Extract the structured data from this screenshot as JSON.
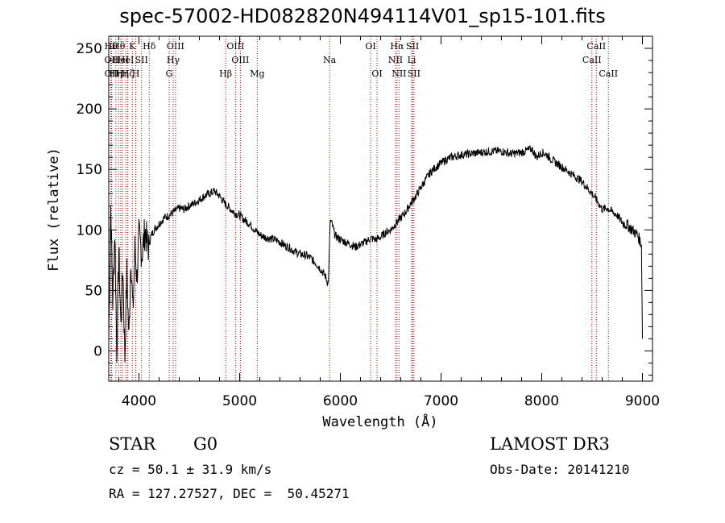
{
  "chart_data": {
    "type": "line",
    "title": "spec-57002-HD082820N494114V01_sp15-101.fits",
    "xlabel": "Wavelength (Å)",
    "ylabel": "Flux (relative)",
    "xlim": [
      3700,
      9100
    ],
    "ylim": [
      -25,
      260
    ],
    "x_ticks": [
      {
        "value": 4000,
        "label": "4000"
      },
      {
        "value": 5000,
        "label": "5000"
      },
      {
        "value": 6000,
        "label": "6000"
      },
      {
        "value": 7000,
        "label": "7000"
      },
      {
        "value": 8000,
        "label": "8000"
      },
      {
        "value": 9000,
        "label": "9000"
      }
    ],
    "y_ticks": [
      {
        "value": 0,
        "label": "0"
      },
      {
        "value": 50,
        "label": "50"
      },
      {
        "value": 100,
        "label": "100"
      },
      {
        "value": 150,
        "label": "150"
      },
      {
        "value": 200,
        "label": "200"
      },
      {
        "value": 250,
        "label": "250"
      }
    ],
    "grid": false,
    "line_color": "#000000",
    "marker_color": "#b00000",
    "series": [
      {
        "x": [
          3700,
          3720,
          3740,
          3760,
          3780,
          3800,
          3820,
          3840,
          3860,
          3880,
          3900,
          3920,
          3940,
          3960,
          3980,
          4000,
          4030,
          4060,
          4090,
          4120,
          4150,
          4200,
          4250,
          4300,
          4350,
          4400,
          4450,
          4500,
          4550,
          4600,
          4650,
          4700,
          4750,
          4800,
          4850,
          4900,
          4950,
          5000,
          5050,
          5100,
          5150,
          5200,
          5250,
          5300,
          5350,
          5400,
          5450,
          5500,
          5550,
          5600,
          5650,
          5700,
          5750,
          5800,
          5850,
          5880,
          5900,
          5920,
          5950,
          6000,
          6050,
          6100,
          6150,
          6200,
          6250,
          6300,
          6350,
          6400,
          6450,
          6500,
          6550,
          6600,
          6650,
          6700,
          6750,
          6800,
          6850,
          6900,
          6950,
          7000,
          7050,
          7100,
          7150,
          7200,
          7300,
          7400,
          7500,
          7600,
          7700,
          7800,
          7900,
          7950,
          8000,
          8050,
          8100,
          8200,
          8300,
          8400,
          8500,
          8550,
          8600,
          8650,
          8700,
          8750,
          8800,
          8850,
          8900,
          8950,
          8990,
          9000
        ],
        "y": [
          10,
          120,
          40,
          100,
          0,
          85,
          20,
          70,
          -5,
          65,
          10,
          80,
          30,
          85,
          60,
          95,
          80,
          100,
          85,
          95,
          100,
          105,
          110,
          112,
          115,
          118,
          117,
          120,
          122,
          125,
          128,
          130,
          132,
          128,
          122,
          118,
          114,
          112,
          108,
          105,
          100,
          96,
          94,
          93,
          92,
          90,
          87,
          85,
          82,
          80,
          79,
          77,
          73,
          68,
          62,
          55,
          108,
          104,
          95,
          92,
          90,
          88,
          86,
          88,
          90,
          93,
          92,
          94,
          98,
          100,
          105,
          110,
          115,
          122,
          128,
          135,
          142,
          148,
          152,
          155,
          158,
          160,
          161,
          162,
          163,
          164,
          165,
          165,
          163,
          164,
          167,
          160,
          164,
          162,
          158,
          152,
          146,
          140,
          130,
          124,
          117,
          118,
          115,
          112,
          106,
          104,
          100,
          96,
          88,
          10
        ]
      }
    ],
    "line_markers": [
      {
        "x": 3722,
        "label": "Hθ",
        "row": 0
      },
      {
        "x": 3727,
        "label": "OII",
        "row": 1
      },
      {
        "x": 3728,
        "label": "OII",
        "row": 2
      },
      {
        "x": 3771,
        "label": "Hη",
        "row": 2
      },
      {
        "x": 3798,
        "label": "Hθ",
        "row": 0
      },
      {
        "x": 3820,
        "label": "HeI",
        "row": 1
      },
      {
        "x": 3835,
        "label": "Hη",
        "row": 2
      },
      {
        "x": 3869,
        "label": "HeI",
        "row": 1
      },
      {
        "x": 3889,
        "label": "Hζ",
        "row": 2
      },
      {
        "x": 3934,
        "label": "K",
        "row": 0
      },
      {
        "x": 3968,
        "label": "H",
        "row": 2
      },
      {
        "x": 4026,
        "label": "SII",
        "row": 1
      },
      {
        "x": 4102,
        "label": "Hδ",
        "row": 0
      },
      {
        "x": 4300,
        "label": "G",
        "row": 2
      },
      {
        "x": 4340,
        "label": "Hγ",
        "row": 1
      },
      {
        "x": 4363,
        "label": "OIII",
        "row": 0
      },
      {
        "x": 4861,
        "label": "Hβ",
        "row": 2
      },
      {
        "x": 4959,
        "label": "OIII",
        "row": 0
      },
      {
        "x": 5007,
        "label": "OIII",
        "row": 1
      },
      {
        "x": 5175,
        "label": "Mg",
        "row": 2
      },
      {
        "x": 5893,
        "label": "Na",
        "row": 1
      },
      {
        "x": 6300,
        "label": "OI",
        "row": 0
      },
      {
        "x": 6364,
        "label": "OI",
        "row": 2
      },
      {
        "x": 6548,
        "label": "NII",
        "row": 1
      },
      {
        "x": 6563,
        "label": "Hα",
        "row": 0
      },
      {
        "x": 6583,
        "label": "NII",
        "row": 2
      },
      {
        "x": 6708,
        "label": "Li",
        "row": 1
      },
      {
        "x": 6717,
        "label": "SII",
        "row": 0
      },
      {
        "x": 6731,
        "label": "SII",
        "row": 2
      },
      {
        "x": 8498,
        "label": "CaII",
        "row": 1
      },
      {
        "x": 8542,
        "label": "CaII",
        "row": 0
      },
      {
        "x": 8662,
        "label": "CaII",
        "row": 2
      }
    ]
  },
  "footer": {
    "object_type": "STAR",
    "subclass": "G0",
    "survey": "LAMOST DR3",
    "redshift": "cz = 50.1 ± 31.9 km/s",
    "obs_date": "Obs-Date: 20141210",
    "coords": "RA = 127.27527, DEC =  50.45271"
  }
}
